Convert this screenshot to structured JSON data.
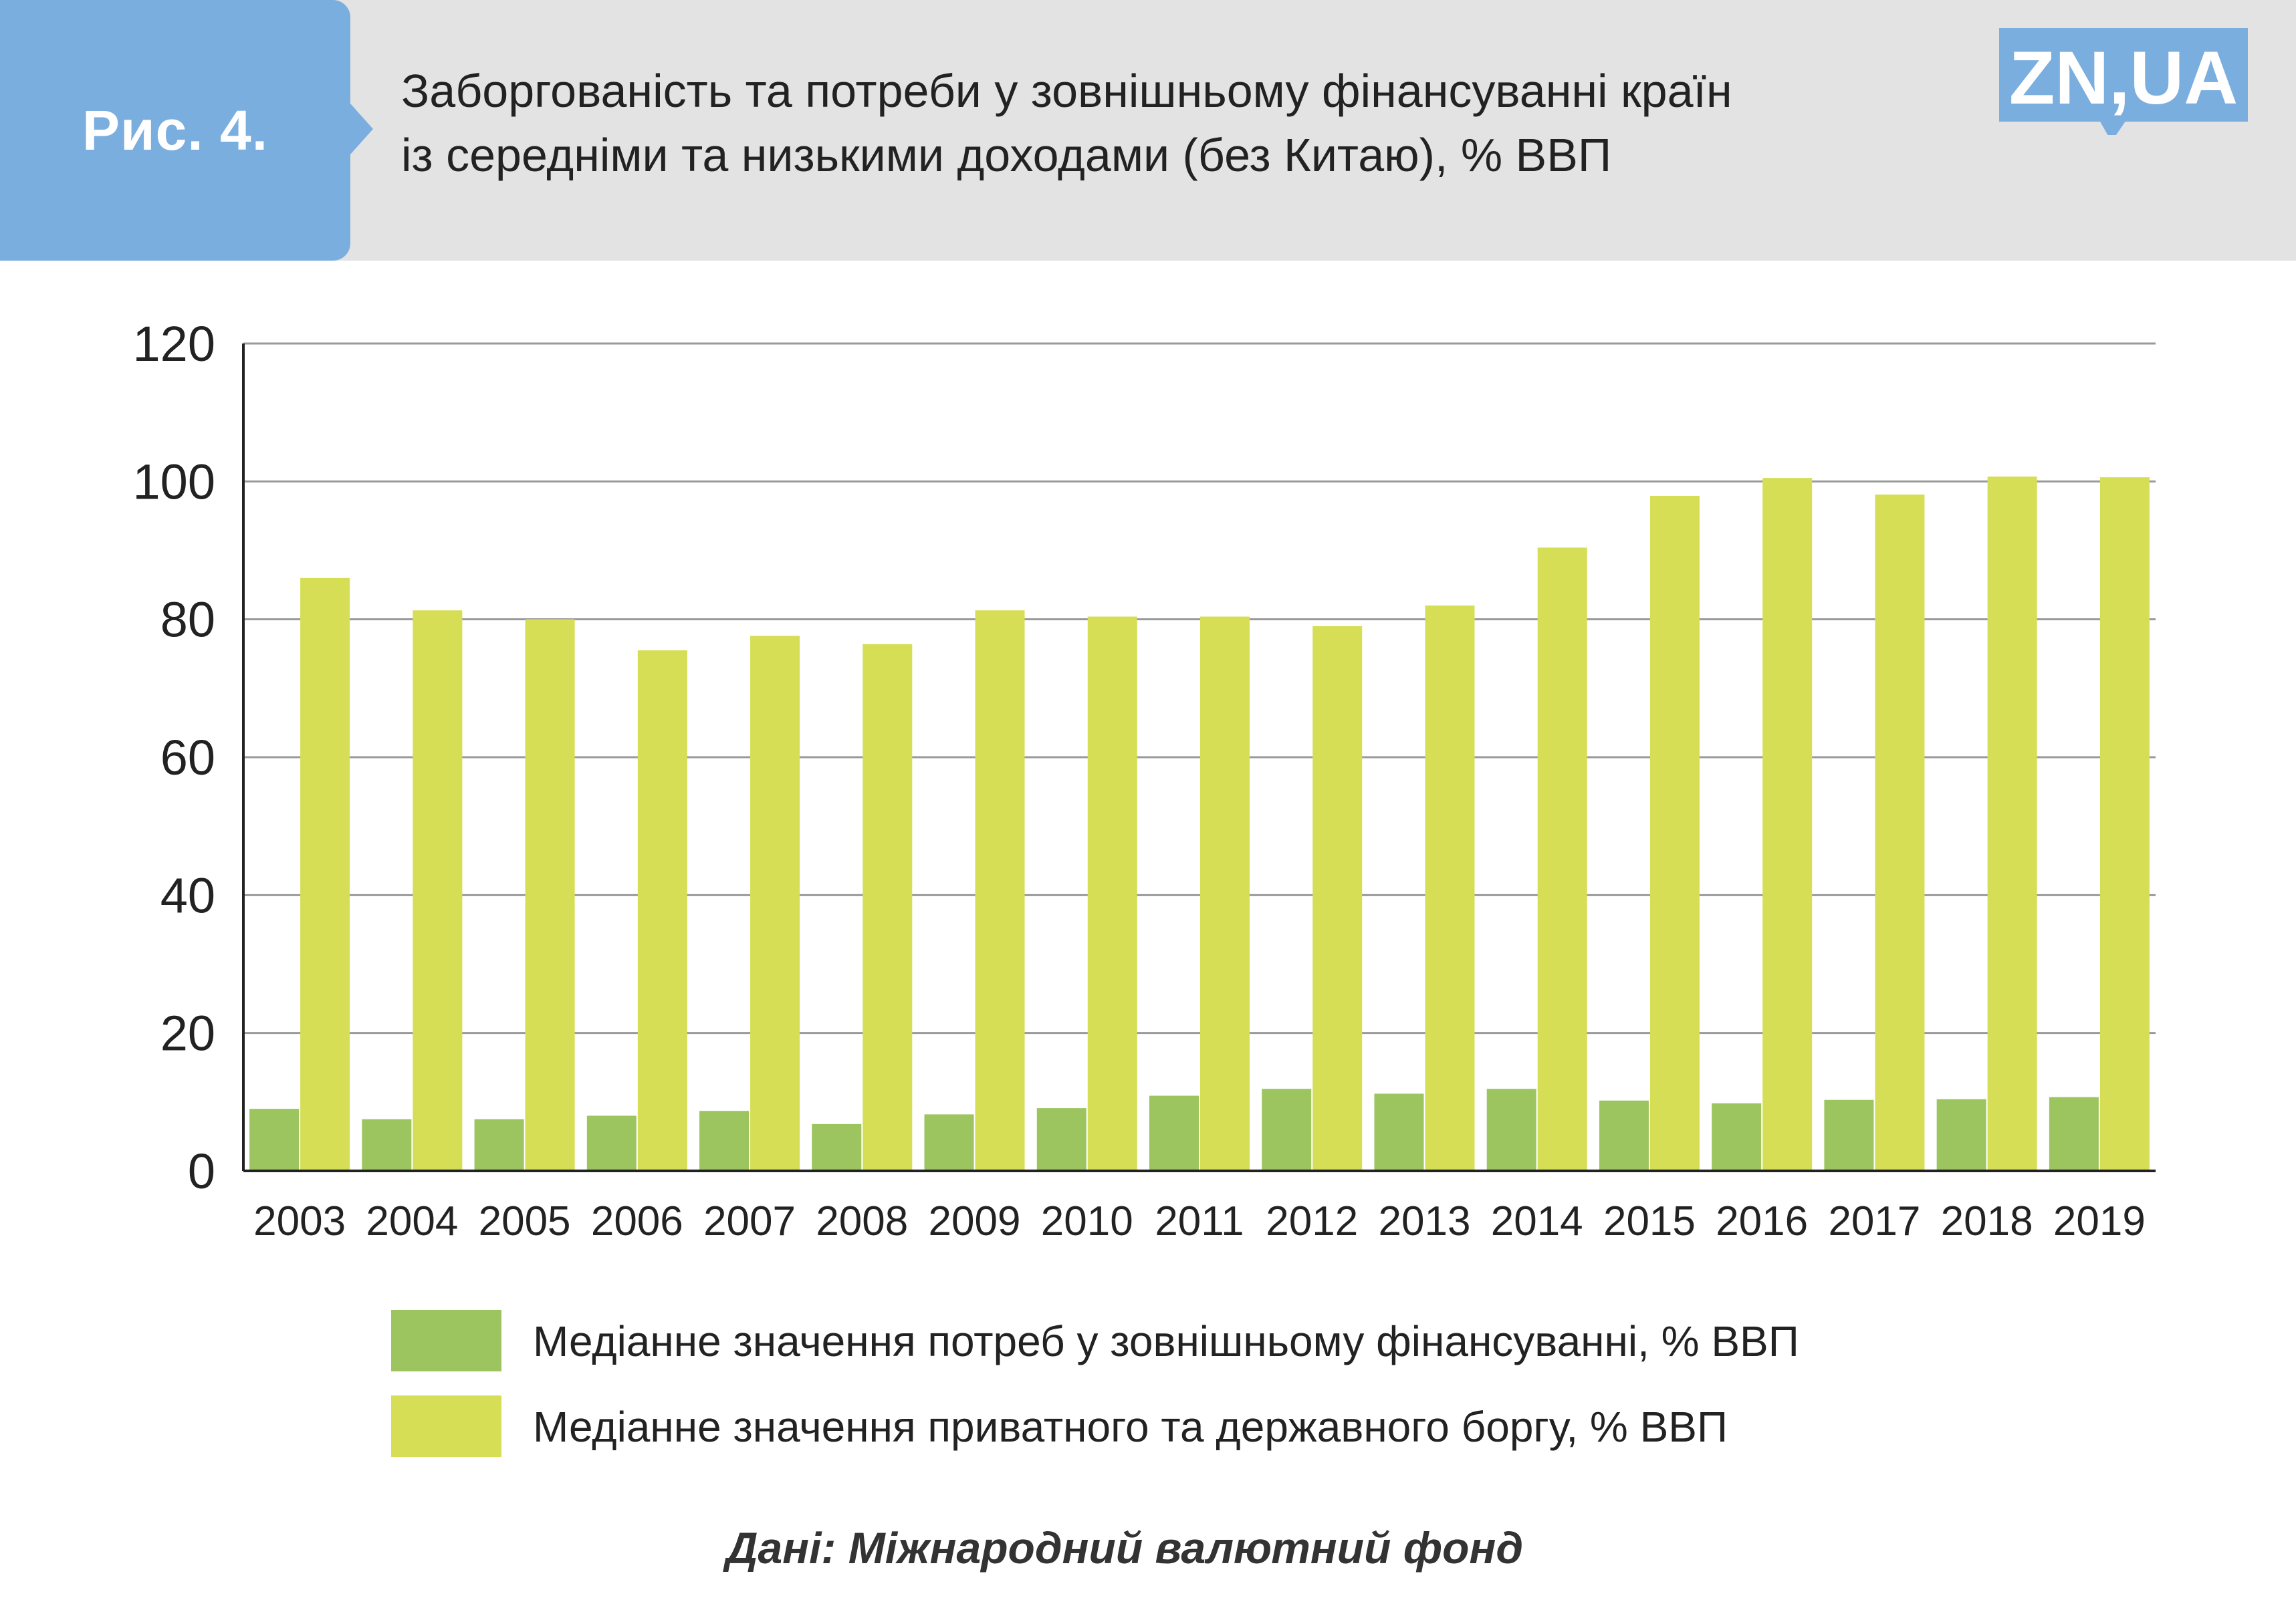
{
  "header": {
    "figure_label": "Рис. 4.",
    "title_line1": "Заборгованість та потреби у зовнішньому фінансуванні країн",
    "title_line2": "із середніми та низькими доходами (без Китаю), % ВВП",
    "logo_text": "ZN,UA"
  },
  "colors": {
    "header_bg": "#e3e3e3",
    "badge": "#7aaedf",
    "logo": "#7aaedf",
    "series_financing": "#9cc55f",
    "series_debt": "#d5de55"
  },
  "chart_data": {
    "type": "bar",
    "categories": [
      "2003",
      "2004",
      "2005",
      "2006",
      "2007",
      "2008",
      "2009",
      "2010",
      "2011",
      "2012",
      "2013",
      "2014",
      "2015",
      "2016",
      "2017",
      "2018",
      "2019"
    ],
    "series": [
      {
        "name": "Медіанне значення потреб у зовнішньому фінансуванні, % ВВП",
        "color": "#9cc55f",
        "values": [
          9,
          7.5,
          7.5,
          8,
          8.7,
          6.8,
          8.2,
          9.1,
          10.9,
          11.9,
          11.2,
          11.9,
          10.2,
          9.8,
          10.3,
          10.4,
          10.7
        ]
      },
      {
        "name": "Медіанне значення приватного та державного боргу, % ВВП",
        "color": "#d5de55",
        "values": [
          86,
          81.3,
          80,
          75.5,
          77.6,
          76.4,
          81.3,
          80.4,
          80.4,
          79,
          82,
          90.4,
          97.9,
          100.5,
          98.1,
          100.7,
          100.6
        ]
      }
    ],
    "yticks": [
      "0",
      "20",
      "40",
      "60",
      "80",
      "100",
      "120"
    ],
    "ylim": [
      0,
      120
    ],
    "grid": true,
    "legend_position": "bottom"
  },
  "source": "Дані: Міжнародний валютний фонд"
}
